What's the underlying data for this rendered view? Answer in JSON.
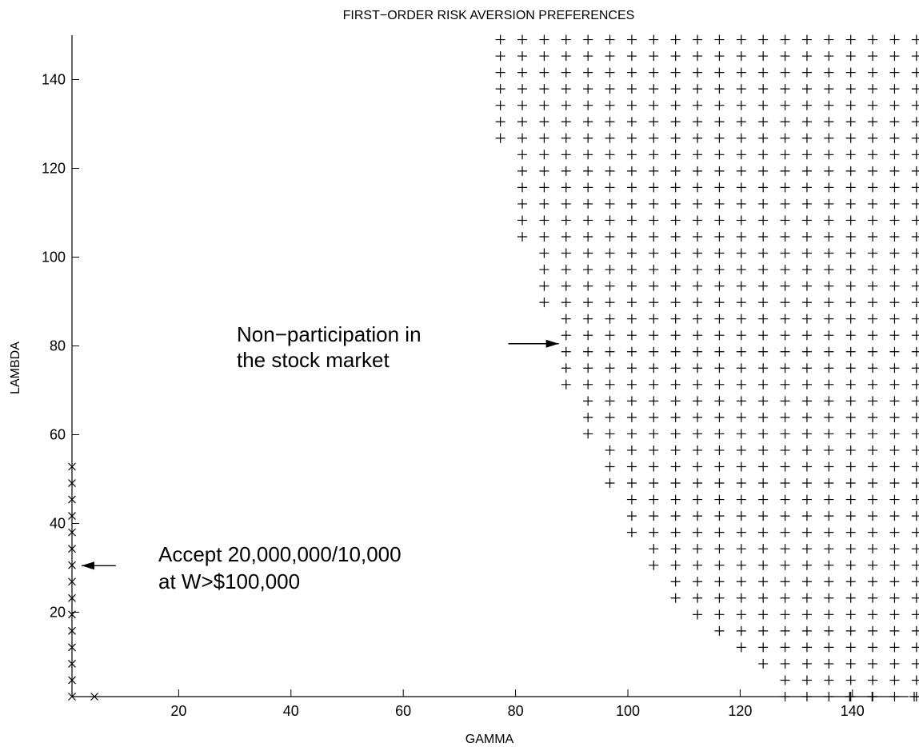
{
  "chart_data": {
    "type": "scatter",
    "title": "FIRST−ORDER RISK AVERSION PREFERENCES",
    "xlabel": "GAMMA",
    "ylabel": "LAMBDA",
    "xlim": [
      1,
      150
    ],
    "ylim": [
      1,
      150
    ],
    "xticks": [
      20,
      40,
      60,
      80,
      100,
      120,
      140
    ],
    "yticks": [
      20,
      40,
      60,
      80,
      100,
      120,
      140
    ],
    "grid": false,
    "plus_grid": {
      "gamma_values": [
        77.3,
        81.2,
        85.1,
        89.0,
        92.9,
        96.8,
        100.7,
        104.6,
        108.5,
        112.4,
        116.3,
        120.2,
        124.1,
        128.0,
        131.9,
        135.8,
        139.7,
        143.6,
        147.5,
        151.4
      ],
      "lambda_values": [
        1.0,
        4.7,
        8.4,
        12.1,
        15.8,
        19.5,
        23.2,
        26.9,
        30.6,
        34.3,
        38.0,
        41.7,
        45.4,
        49.1,
        52.8,
        56.5,
        60.2,
        63.9,
        67.6,
        71.3,
        75.0,
        78.7,
        82.4,
        86.1,
        89.8,
        93.5,
        97.2,
        100.9,
        104.6,
        108.3,
        112.0,
        115.7,
        119.4,
        123.1,
        126.8,
        130.5,
        134.2,
        137.9,
        141.6,
        145.3,
        149.0
      ],
      "row_start_gamma": [
        127.5,
        127.5,
        123.6,
        119.7,
        115.8,
        111.9,
        108.0,
        108.0,
        104.1,
        104.1,
        100.2,
        100.2,
        100.2,
        96.3,
        96.3,
        96.3,
        92.4,
        92.4,
        92.4,
        88.5,
        88.5,
        88.5,
        88.5,
        88.5,
        84.6,
        84.6,
        84.6,
        84.6,
        80.7,
        80.7,
        80.7,
        80.7,
        80.7,
        80.7,
        76.8,
        76.8,
        76.8,
        76.8,
        76.8,
        76.8,
        76.8
      ]
    },
    "series": [
      {
        "marker": "plus",
        "label": "Non−participation in the stock market",
        "points": []
      },
      {
        "marker": "x",
        "label": "Accept 20,000,000/10,000 at W>$100,000",
        "points": [
          [
            1,
            1
          ],
          [
            5,
            1
          ],
          [
            1,
            4.7
          ],
          [
            1,
            8.4
          ],
          [
            1,
            12.1
          ],
          [
            1,
            15.8
          ],
          [
            1,
            19.5
          ],
          [
            1,
            23.2
          ],
          [
            1,
            26.9
          ],
          [
            1,
            30.6
          ],
          [
            1,
            34.3
          ],
          [
            1,
            38.0
          ],
          [
            1,
            41.7
          ],
          [
            1,
            45.4
          ],
          [
            1,
            49.1
          ],
          [
            1,
            52.8
          ]
        ]
      }
    ],
    "extra_plus_points": [
      [
        139.5,
        1
      ],
      [
        143.5,
        1
      ],
      [
        151,
        1
      ]
    ],
    "annotations": [
      {
        "lines": [
          "Non−participation in",
          "the stock market"
        ],
        "arrow_to": [
          87.7,
          80.5
        ],
        "arrow_from": [
          78.7,
          80.5
        ]
      },
      {
        "lines": [
          "Accept 20,000,000/10,000",
          "at W>$100,000"
        ],
        "arrow_to": [
          2.7,
          30.5
        ],
        "arrow_from": [
          8.8,
          30.5
        ]
      }
    ]
  }
}
